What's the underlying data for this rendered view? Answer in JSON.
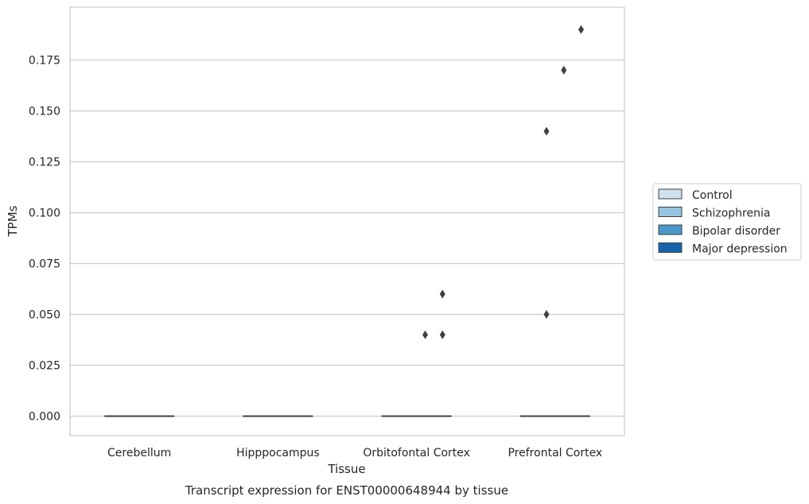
{
  "chart_data": {
    "type": "box",
    "caption": "Transcript expression for ENST00000648944 by tissue",
    "xlabel": "Tissue",
    "ylabel": "TPMs",
    "categories": [
      "Cerebellum",
      "Hipppocampus",
      "Orbitofontal Cortex",
      "Prefrontal Cortex"
    ],
    "yticks": [
      "0.000",
      "0.025",
      "0.050",
      "0.075",
      "0.100",
      "0.125",
      "0.150",
      "0.175"
    ],
    "ylim": [
      -0.009,
      0.198
    ],
    "grid": "horizontal",
    "legend_position": "right",
    "series": [
      {
        "name": "Control",
        "color": "#d0e1f2"
      },
      {
        "name": "Schizophrenia",
        "color": "#94c4df"
      },
      {
        "name": "Bipolar disorder",
        "color": "#4a98c9"
      },
      {
        "name": "Major depression",
        "color": "#1764ab"
      }
    ],
    "boxes": [
      {
        "category": "Cerebellum",
        "series": "Control",
        "min": 0,
        "q1": 0,
        "median": 0,
        "q3": 0,
        "max": 0
      },
      {
        "category": "Cerebellum",
        "series": "Schizophrenia",
        "min": 0,
        "q1": 0,
        "median": 0,
        "q3": 0,
        "max": 0
      },
      {
        "category": "Cerebellum",
        "series": "Bipolar disorder",
        "min": 0,
        "q1": 0,
        "median": 0,
        "q3": 0,
        "max": 0
      },
      {
        "category": "Cerebellum",
        "series": "Major depression",
        "min": 0,
        "q1": 0,
        "median": 0,
        "q3": 0,
        "max": 0
      },
      {
        "category": "Hipppocampus",
        "series": "Control",
        "min": 0,
        "q1": 0,
        "median": 0,
        "q3": 0,
        "max": 0
      },
      {
        "category": "Hipppocampus",
        "series": "Schizophrenia",
        "min": 0,
        "q1": 0,
        "median": 0,
        "q3": 0,
        "max": 0
      },
      {
        "category": "Hipppocampus",
        "series": "Bipolar disorder",
        "min": 0,
        "q1": 0,
        "median": 0,
        "q3": 0,
        "max": 0
      },
      {
        "category": "Hipppocampus",
        "series": "Major depression",
        "min": 0,
        "q1": 0,
        "median": 0,
        "q3": 0,
        "max": 0
      },
      {
        "category": "Orbitofontal Cortex",
        "series": "Control",
        "min": 0,
        "q1": 0,
        "median": 0,
        "q3": 0,
        "max": 0
      },
      {
        "category": "Orbitofontal Cortex",
        "series": "Schizophrenia",
        "min": 0,
        "q1": 0,
        "median": 0,
        "q3": 0,
        "max": 0
      },
      {
        "category": "Orbitofontal Cortex",
        "series": "Bipolar disorder",
        "min": 0,
        "q1": 0,
        "median": 0,
        "q3": 0,
        "max": 0
      },
      {
        "category": "Orbitofontal Cortex",
        "series": "Major depression",
        "min": 0,
        "q1": 0,
        "median": 0,
        "q3": 0,
        "max": 0
      },
      {
        "category": "Prefrontal Cortex",
        "series": "Control",
        "min": 0,
        "q1": 0,
        "median": 0,
        "q3": 0,
        "max": 0
      },
      {
        "category": "Prefrontal Cortex",
        "series": "Schizophrenia",
        "min": 0,
        "q1": 0,
        "median": 0,
        "q3": 0,
        "max": 0
      },
      {
        "category": "Prefrontal Cortex",
        "series": "Bipolar disorder",
        "min": 0,
        "q1": 0,
        "median": 0,
        "q3": 0,
        "max": 0
      },
      {
        "category": "Prefrontal Cortex",
        "series": "Major depression",
        "min": 0,
        "q1": 0,
        "median": 0,
        "q3": 0,
        "max": 0
      }
    ],
    "outliers": [
      {
        "category": "Orbitofontal Cortex",
        "series": "Bipolar disorder",
        "value": 0.04
      },
      {
        "category": "Orbitofontal Cortex",
        "series": "Major depression",
        "value": 0.06
      },
      {
        "category": "Orbitofontal Cortex",
        "series": "Major depression",
        "value": 0.04
      },
      {
        "category": "Prefrontal Cortex",
        "series": "Schizophrenia",
        "value": 0.14
      },
      {
        "category": "Prefrontal Cortex",
        "series": "Schizophrenia",
        "value": 0.05
      },
      {
        "category": "Prefrontal Cortex",
        "series": "Bipolar disorder",
        "value": 0.17
      },
      {
        "category": "Prefrontal Cortex",
        "series": "Major depression",
        "value": 0.19
      }
    ]
  }
}
